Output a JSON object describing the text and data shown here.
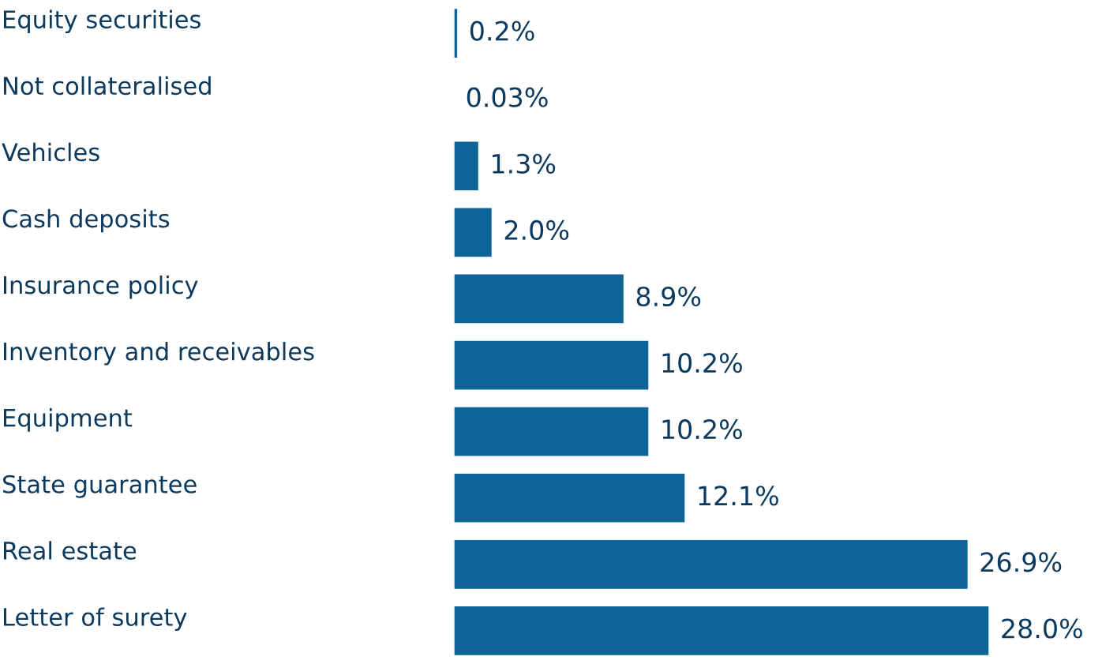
{
  "chart_data": {
    "type": "bar",
    "orientation": "horizontal",
    "categories": [
      "Equity securities",
      "Not collateralised",
      "Vehicles",
      "Cash deposits",
      "Insurance policy",
      "Inventory and receivables",
      "Equipment",
      "State guarantee",
      "Real estate",
      "Letter of surety"
    ],
    "values": [
      0.2,
      0.03,
      1.3,
      2.0,
      8.9,
      10.2,
      10.2,
      12.1,
      26.9,
      28.0
    ],
    "value_labels": [
      "0.2%",
      "0.03%",
      "1.3%",
      "2.0%",
      "8.9%",
      "10.2%",
      "10.2%",
      "12.1%",
      "26.9%",
      "28.0%"
    ],
    "color": "#0e6399",
    "xlim": [
      0,
      28.0
    ],
    "tick_labels": "y",
    "grid": false,
    "legend": false
  }
}
